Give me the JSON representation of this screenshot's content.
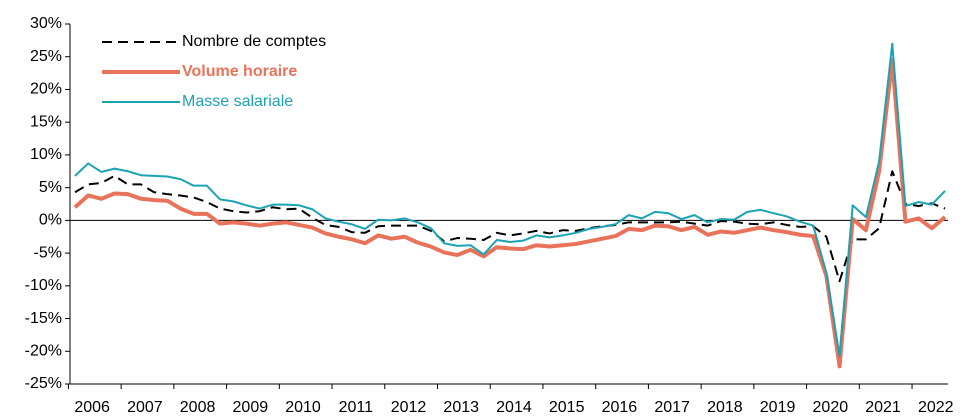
{
  "chart_data": {
    "type": "line",
    "categories": [
      null,
      "2006",
      null,
      null,
      null,
      "2007",
      null,
      null,
      null,
      "2008",
      null,
      null,
      null,
      "2009",
      null,
      null,
      null,
      "2010",
      null,
      null,
      null,
      "2011",
      null,
      null,
      null,
      "2012",
      null,
      null,
      null,
      "2013",
      null,
      null,
      null,
      "2014",
      null,
      null,
      null,
      "2015",
      null,
      null,
      null,
      "2016",
      null,
      null,
      null,
      "2017",
      null,
      null,
      null,
      "2018",
      null,
      null,
      null,
      "2019",
      null,
      null,
      null,
      "2020",
      null,
      null,
      null,
      "2021",
      null,
      null,
      null,
      "2022",
      null
    ],
    "series": [
      {
        "name": "Nombre de comptes",
        "color": "#000000",
        "dash": true,
        "width": 2,
        "values": [
          4.3,
          5.5,
          5.7,
          6.8,
          5.5,
          5.5,
          4.3,
          4.0,
          3.8,
          3.5,
          2.8,
          1.8,
          1.4,
          1.2,
          1.4,
          2.0,
          1.7,
          1.8,
          0.4,
          -0.7,
          -1.0,
          -1.8,
          -1.9,
          -0.9,
          -0.8,
          -0.8,
          -0.8,
          -1.6,
          -3.2,
          -2.7,
          -2.8,
          -3.0,
          -1.9,
          -2.3,
          -2.0,
          -1.6,
          -2.0,
          -1.5,
          -1.6,
          -1.2,
          -0.9,
          -0.7,
          -0.3,
          -0.3,
          -0.3,
          -0.3,
          -0.2,
          -0.5,
          -0.8,
          -0.1,
          -0.2,
          -0.5,
          -0.6,
          -0.3,
          -0.7,
          -1.0,
          -0.9,
          -2.5,
          -9.3,
          -2.9,
          -2.9,
          -1.2,
          7.5,
          2.5,
          2.2,
          2.6,
          1.8
        ]
      },
      {
        "name": "Volume horaire",
        "color": "#e8735a",
        "dash": false,
        "width": 4,
        "bold": true,
        "values": [
          2,
          3.8,
          3.3,
          4.1,
          4,
          3.3,
          3.1,
          3.0,
          1.8,
          1.0,
          1.0,
          -0.5,
          -0.3,
          -0.5,
          -0.8,
          -0.5,
          -0.3,
          -0.7,
          -1.1,
          -2.0,
          -2.5,
          -2.9,
          -3.5,
          -2.3,
          -2.8,
          -2.5,
          -3.4,
          -4.0,
          -4.9,
          -5.3,
          -4.5,
          -5.5,
          -4.1,
          -4.3,
          -4.4,
          -3.8,
          -4.0,
          -3.8,
          -3.6,
          -3.2,
          -2.8,
          -2.4,
          -1.3,
          -1.5,
          -0.8,
          -0.9,
          -1.5,
          -1.0,
          -2.2,
          -1.7,
          -1.9,
          -1.5,
          -1.1,
          -1.5,
          -1.8,
          -2.2,
          -2.4,
          -8.5,
          -22.3,
          0.2,
          -1.5,
          7.5,
          24.5,
          -0.2,
          0.3,
          -1.2,
          0.5
        ]
      },
      {
        "name": "Masse salariale",
        "color": "#1ba3b5",
        "dash": false,
        "width": 2,
        "values": [
          6.8,
          8.7,
          7.4,
          7.9,
          7.5,
          6.9,
          6.8,
          6.7,
          6.3,
          5.3,
          5.3,
          3.2,
          2.9,
          2.3,
          1.8,
          2.4,
          2.4,
          2.3,
          1.7,
          0.3,
          -0.2,
          -0.6,
          -1.3,
          0.1,
          0,
          0.3,
          -0.3,
          -1.2,
          -3.5,
          -3.9,
          -3.8,
          -5.2,
          -3.0,
          -3.3,
          -3.1,
          -2.3,
          -2.6,
          -2.3,
          -1.9,
          -1.3,
          -1.0,
          -0.6,
          0.8,
          0.3,
          1.3,
          1.1,
          0.2,
          0.8,
          -0.3,
          0.2,
          0.1,
          1.3,
          1.6,
          1.1,
          0.6,
          -0.2,
          -0.8,
          -8,
          -20.7,
          2.3,
          0.5,
          9,
          27,
          2.2,
          2.8,
          2.4,
          4.5
        ]
      }
    ],
    "ylim": [
      -25,
      30
    ],
    "yticks": [
      {
        "value": -25,
        "label": "-25%"
      },
      {
        "value": -20,
        "label": "-20%"
      },
      {
        "value": -15,
        "label": "-15%"
      },
      {
        "value": -10,
        "label": "-10%"
      },
      {
        "value": -5,
        "label": "-5%"
      },
      {
        "value": 0,
        "label": "0%"
      },
      {
        "value": 5,
        "label": "5%"
      },
      {
        "value": 10,
        "label": "10%"
      },
      {
        "value": 15,
        "label": "15%"
      },
      {
        "value": 20,
        "label": "20%"
      },
      {
        "value": 25,
        "label": "25%"
      },
      {
        "value": 30,
        "label": "30%"
      }
    ],
    "grid": false,
    "legend": "upper left"
  }
}
